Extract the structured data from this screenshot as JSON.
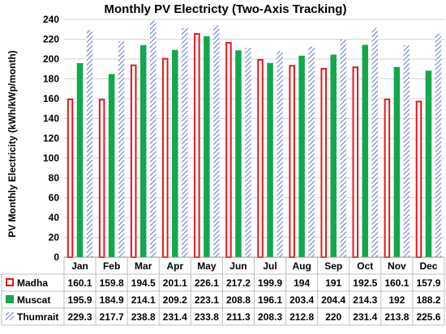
{
  "chart_data": {
    "type": "bar",
    "title": "Monthly PV Electricty (Two-Axis Tracking)",
    "ylabel": "PV Monthly Electricity (kWh/kWp/month)",
    "xlabel": "",
    "ylim": [
      0,
      240
    ],
    "yticks": [
      0,
      20,
      40,
      60,
      80,
      100,
      120,
      140,
      160,
      180,
      200,
      220,
      240
    ],
    "grid": true,
    "legend": "data-table",
    "categories": [
      "Jan",
      "Feb",
      "Mar",
      "Apr",
      "May",
      "Jun",
      "Jul",
      "Aug",
      "Sep",
      "Oct",
      "Nov",
      "Dec"
    ],
    "series": [
      {
        "name": "Madha",
        "style": "outline",
        "color": "#e8141c",
        "values": [
          160.1,
          159.8,
          194.5,
          201.1,
          226.1,
          217.2,
          199.9,
          194,
          191,
          192.5,
          160.1,
          157.9
        ]
      },
      {
        "name": "Muscat",
        "style": "solid",
        "color": "#12a84c",
        "values": [
          195.9,
          184.9,
          214.1,
          209.2,
          223.1,
          208.8,
          196.1,
          203.4,
          204.4,
          214.3,
          192,
          188.2
        ]
      },
      {
        "name": "Thumrait",
        "style": "hatched",
        "color": "#6f7fd6",
        "values": [
          229.3,
          217.7,
          238.8,
          231.4,
          233.8,
          211.3,
          208.3,
          212.8,
          220,
          231.4,
          213.8,
          225.6
        ]
      }
    ]
  }
}
